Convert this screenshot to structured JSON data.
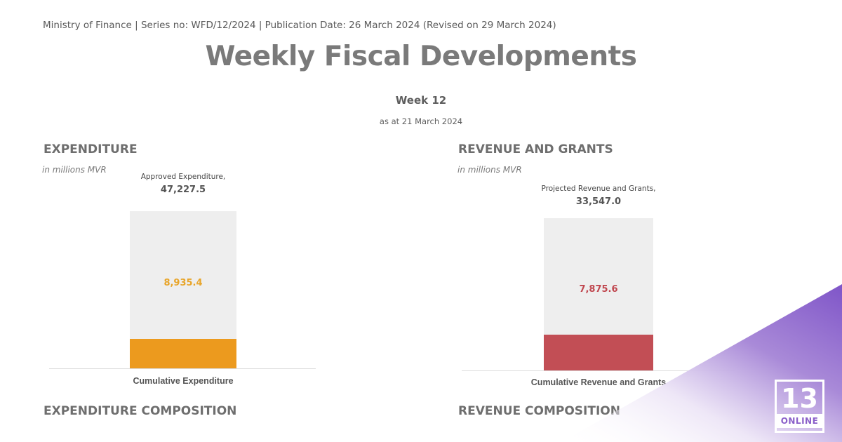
{
  "header": {
    "line": "Ministry of Finance | Series no: WFD/12/2024 | Publication Date: 26 March 2024 (Revised on 29 March 2024)",
    "title": "Weekly Fiscal Developments",
    "week": "Week 12",
    "as_at": "as at 21 March 2024"
  },
  "expenditure": {
    "title": "EXPENDITURE",
    "units": "in millions MVR",
    "total_caption": "Approved Expenditure,",
    "total_label": "47,227.5",
    "value_label": "8,935.4",
    "axis_label": "Cumulative Expenditure",
    "color": "#ec9a1e",
    "value_color": "#e8a52a"
  },
  "revenue": {
    "title": "REVENUE AND GRANTS",
    "units": "in millions MVR",
    "total_caption": "Projected Revenue and Grants,",
    "total_label": "33,547.0",
    "value_label": "7,875.6",
    "axis_label": "Cumulative Revenue and Grants",
    "color": "#c24e55",
    "value_color": "#c0474f"
  },
  "sections": {
    "expenditure_composition": "EXPENDITURE COMPOSITION",
    "revenue_composition": "REVENUE COMPOSITION"
  },
  "logo": {
    "number": "13",
    "word": "ONLINE"
  },
  "chart_data": [
    {
      "type": "bar",
      "categories": [
        "Cumulative Expenditure"
      ],
      "values": [
        8935.4
      ],
      "total": 47227.5,
      "total_caption": "Approved Expenditure,",
      "title": "EXPENDITURE",
      "ylabel": "in millions MVR"
    },
    {
      "type": "bar",
      "categories": [
        "Cumulative Revenue and Grants"
      ],
      "values": [
        7875.6
      ],
      "total": 33547.0,
      "total_caption": "Projected Revenue and Grants,",
      "title": "REVENUE AND GRANTS",
      "ylabel": "in millions MVR"
    }
  ]
}
